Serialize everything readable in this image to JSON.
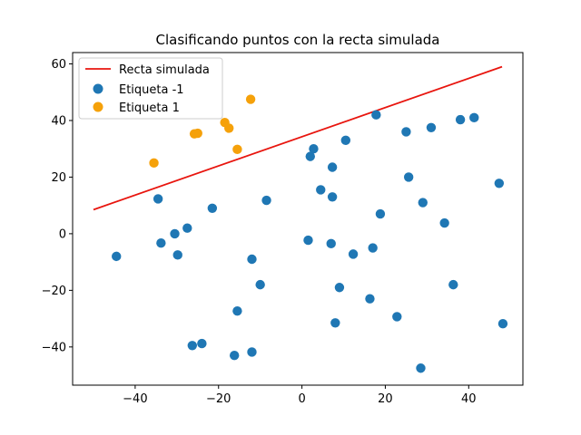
{
  "chart_data": {
    "type": "scatter",
    "title": "Clasificando puntos con la recta simulada",
    "xlabel": "",
    "ylabel": "",
    "xlim": [
      -55,
      53
    ],
    "ylim": [
      -53.5,
      64
    ],
    "x_ticks": [
      -40,
      -20,
      0,
      20,
      40
    ],
    "y_ticks": [
      -40,
      -20,
      0,
      20,
      40,
      60
    ],
    "grid": false,
    "legend_position": "top-left",
    "line": {
      "name": "Recta simulada",
      "color": "#e8150e",
      "x": [
        -50,
        48
      ],
      "y": [
        8.5,
        59
      ]
    },
    "series": [
      {
        "name": "Etiqueta -1",
        "color": "#1f77b4",
        "points": [
          [
            -44.5,
            -8
          ],
          [
            -34.5,
            12.3
          ],
          [
            -33.8,
            -3.3
          ],
          [
            -30.5,
            0
          ],
          [
            -29.8,
            -7.5
          ],
          [
            -27.5,
            2
          ],
          [
            -26.3,
            -39.5
          ],
          [
            -24,
            -38.8
          ],
          [
            -21.5,
            9
          ],
          [
            -16.2,
            -43
          ],
          [
            -15.5,
            -27.3
          ],
          [
            -12,
            -9
          ],
          [
            -12,
            -41.8
          ],
          [
            -10,
            -18
          ],
          [
            -8.5,
            11.8
          ],
          [
            1.5,
            -2.3
          ],
          [
            2,
            27.3
          ],
          [
            2.8,
            30
          ],
          [
            4.5,
            15.5
          ],
          [
            7,
            -3.5
          ],
          [
            7.3,
            23.5
          ],
          [
            7.3,
            13
          ],
          [
            8,
            -31.5
          ],
          [
            9,
            -19
          ],
          [
            10.5,
            33
          ],
          [
            12.3,
            -7.2
          ],
          [
            16.3,
            -23
          ],
          [
            17,
            -5
          ],
          [
            17.8,
            42
          ],
          [
            18.8,
            7
          ],
          [
            22.8,
            -29.3
          ],
          [
            25,
            36
          ],
          [
            25.6,
            20
          ],
          [
            28.5,
            -47.5
          ],
          [
            29,
            11
          ],
          [
            31,
            37.5
          ],
          [
            34.2,
            3.8
          ],
          [
            36.3,
            -18
          ],
          [
            38,
            40.3
          ],
          [
            41.3,
            41
          ],
          [
            47.3,
            17.8
          ],
          [
            48.2,
            -31.8
          ]
        ]
      },
      {
        "name": "Etiqueta 1",
        "color": "#f5a10a",
        "points": [
          [
            -35.5,
            25
          ],
          [
            -25.8,
            35.3
          ],
          [
            -25,
            35.5
          ],
          [
            -18.5,
            39.3
          ],
          [
            -17.5,
            37.3
          ],
          [
            -15.5,
            29.8
          ],
          [
            -12.3,
            47.5
          ]
        ]
      }
    ]
  }
}
